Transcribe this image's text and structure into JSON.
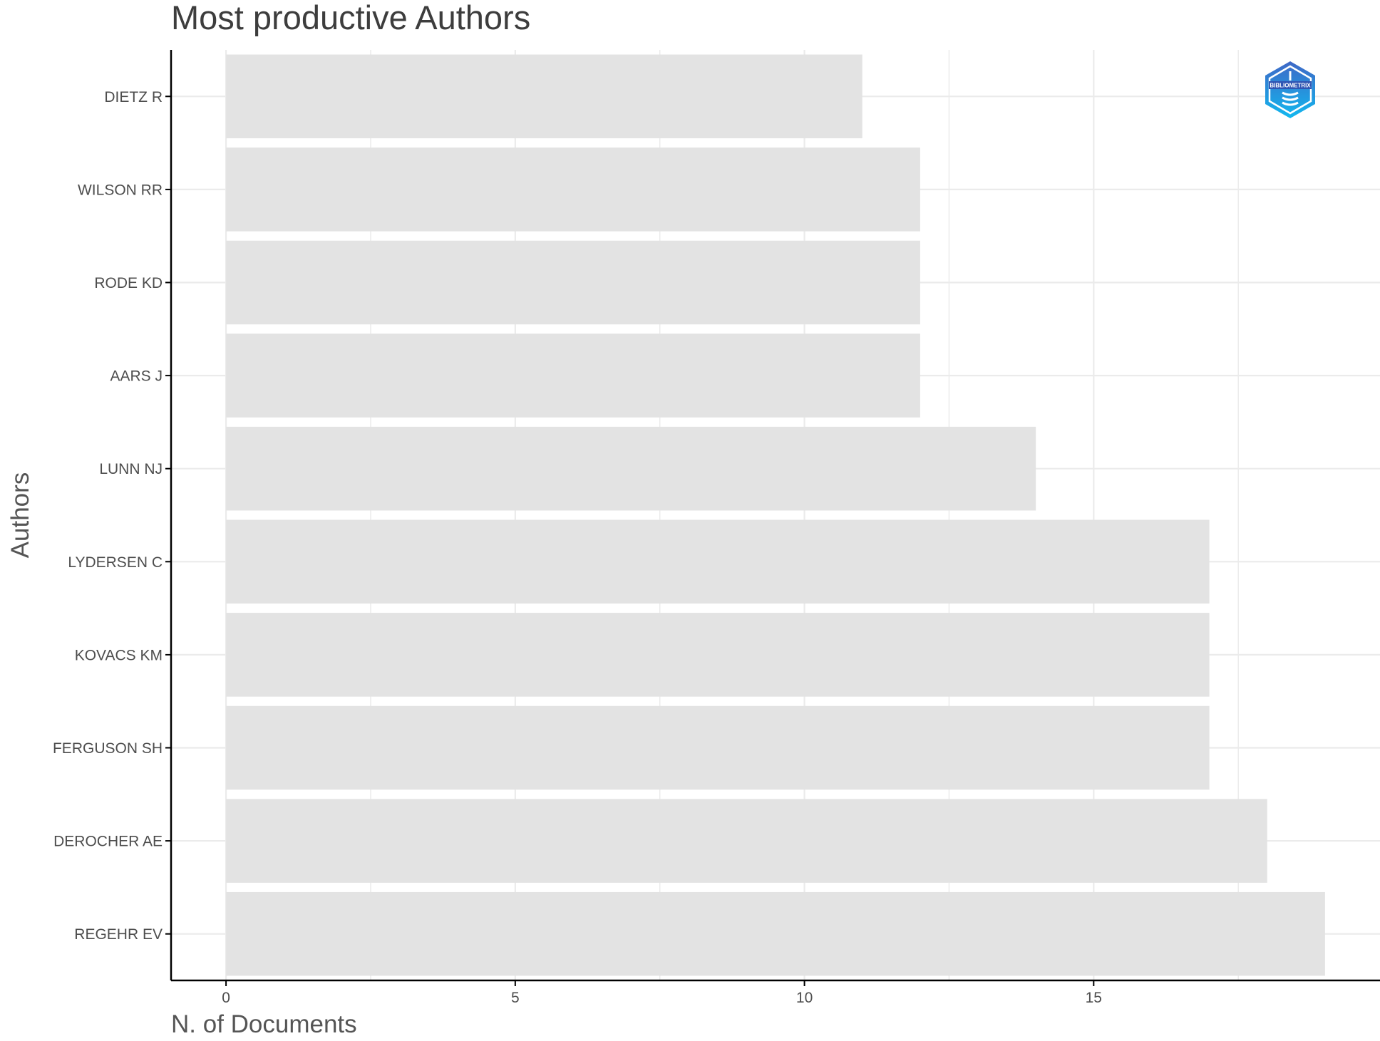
{
  "chart_data": {
    "type": "bar",
    "orientation": "horizontal",
    "title": "Most productive Authors",
    "xlabel": "N. of Documents",
    "ylabel": "Authors",
    "categories": [
      "DIETZ R",
      "WILSON RR",
      "RODE KD",
      "AARS J",
      "LUNN NJ",
      "LYDERSEN C",
      "KOVACS KM",
      "FERGUSON SH",
      "DEROCHER AE",
      "REGEHR EV"
    ],
    "values": [
      11,
      12,
      12,
      12,
      14,
      17,
      17,
      17,
      18,
      19
    ],
    "xlim": [
      -0.95,
      19.95
    ],
    "xticks": [
      0,
      5,
      10,
      15
    ],
    "xtick_labels": [
      "0",
      "5",
      "10",
      "15"
    ],
    "grid": true,
    "bar_color": "#e3e3e3",
    "grid_color": "#ebebeb",
    "axis_color": "#000000"
  },
  "logo": {
    "text": "BIBLIOMETRIX",
    "color_top": "#3f67c6",
    "color_bottom": "#12b8ef"
  }
}
